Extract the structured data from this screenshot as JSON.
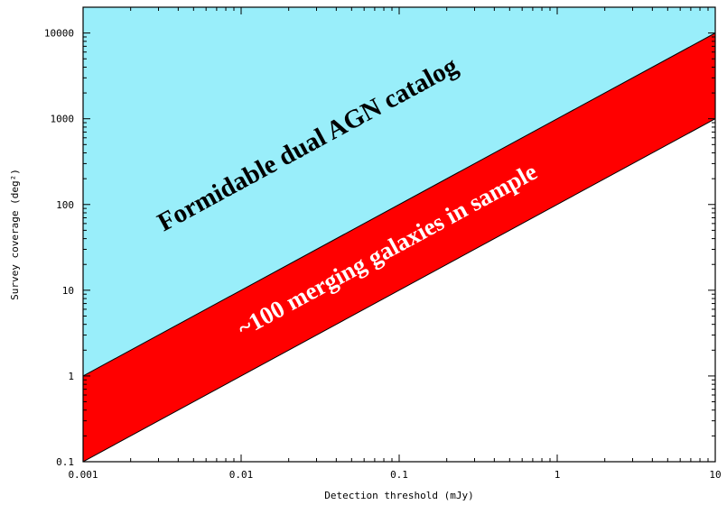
{
  "chart_data": {
    "type": "area",
    "title": "",
    "xlabel": "Detection threshold (mJy)",
    "ylabel": "Survey coverage (deg²)",
    "xscale": "log",
    "yscale": "log",
    "xlim": [
      0.001,
      10
    ],
    "ylim": [
      0.1,
      20000
    ],
    "xticks": [
      0.001,
      0.01,
      0.1,
      1,
      10
    ],
    "xtick_labels": [
      "0.001",
      "0.01",
      "0.1",
      "1",
      "10"
    ],
    "yticks": [
      0.1,
      1,
      10,
      100,
      1000,
      10000
    ],
    "ytick_labels": [
      "0.1",
      "1",
      "10",
      "100",
      "1000",
      "10000"
    ],
    "grid": false,
    "series": [
      {
        "type": "line",
        "x": [
          0.001,
          10
        ],
        "y": [
          0.1,
          1000
        ]
      },
      {
        "type": "line",
        "x": [
          0.001,
          10
        ],
        "y": [
          1,
          10000
        ]
      }
    ],
    "regions": [
      {
        "label": "Formidable dual AGN catalog",
        "color": "#99eefa",
        "text_color": "#000000"
      },
      {
        "label": "~100 merging galaxies in sample",
        "color": "#ff0000",
        "text_color": "#ffffff"
      },
      {
        "label": "",
        "color": "#ffffff"
      }
    ]
  }
}
